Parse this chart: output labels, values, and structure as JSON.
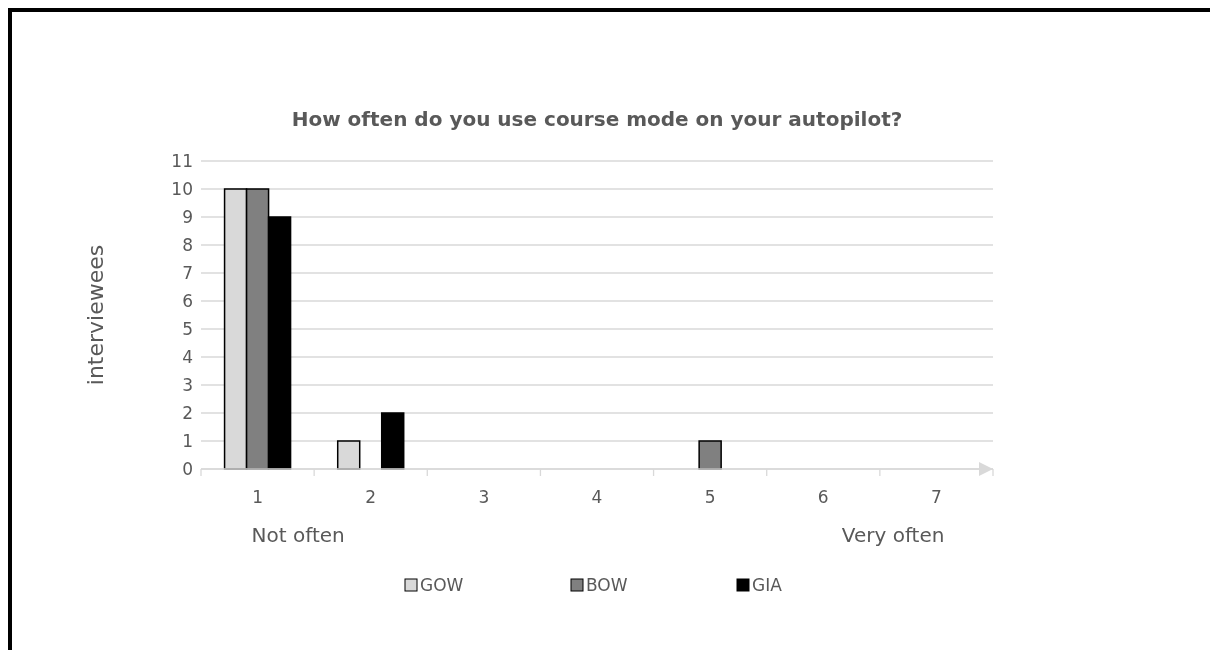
{
  "chart_data": {
    "type": "bar",
    "title": "How often do you use course mode on your autopilot?",
    "ylabel": "interviewees",
    "categories": [
      "1",
      "2",
      "3",
      "4",
      "5",
      "6",
      "7"
    ],
    "series": [
      {
        "name": "GOW",
        "color": "#d9d9d9",
        "values": [
          10,
          1,
          0,
          0,
          0,
          0,
          0
        ]
      },
      {
        "name": "BOW",
        "color": "#808080",
        "values": [
          10,
          0,
          0,
          0,
          1,
          0,
          0
        ]
      },
      {
        "name": "GIA",
        "color": "#000000",
        "values": [
          9,
          2,
          0,
          0,
          0,
          0,
          0
        ]
      }
    ],
    "ylim": [
      0,
      11
    ],
    "yticks": [
      0,
      1,
      2,
      3,
      4,
      5,
      6,
      7,
      8,
      9,
      10,
      11
    ],
    "grid": "y",
    "legend": "bottom",
    "annotations": [
      "Not often",
      "Very often"
    ]
  }
}
